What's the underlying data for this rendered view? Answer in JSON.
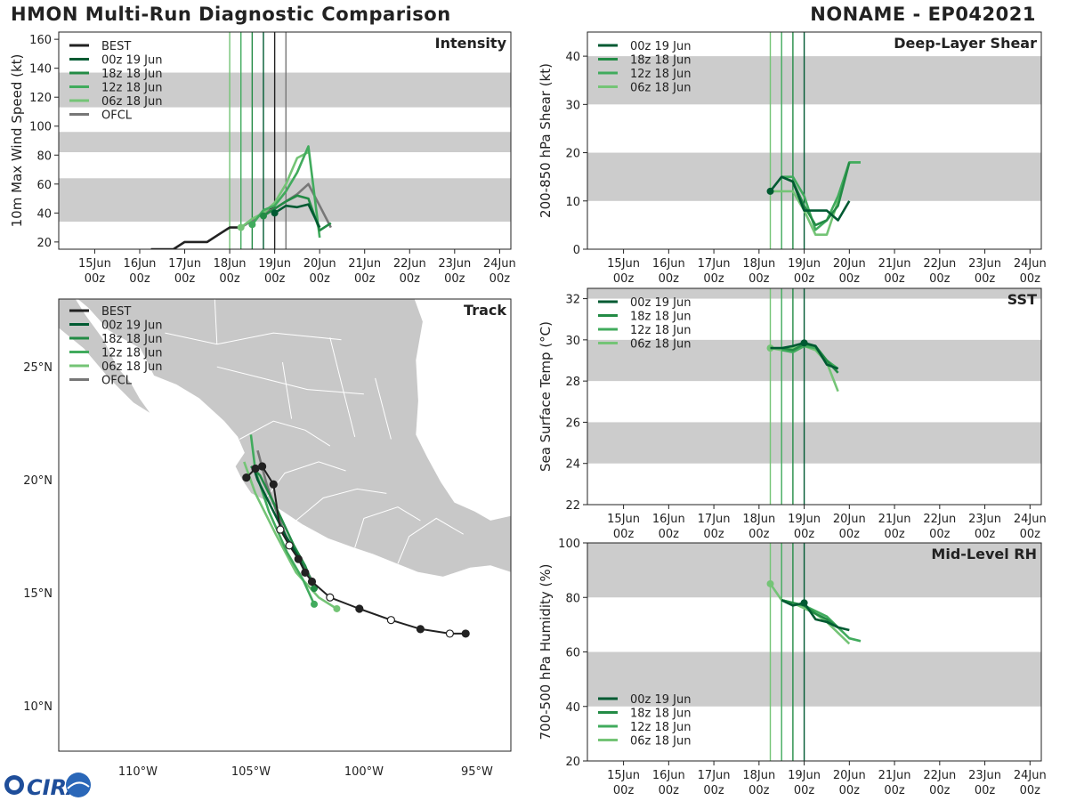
{
  "header": {
    "title": "HMON Multi-Run Diagnostic Comparison",
    "storm": "NONAME - EP042021"
  },
  "logo": {
    "text": "CIRA"
  },
  "colors": {
    "best": "#222222",
    "ofcl": "#777777",
    "run_00z19": "#005a32",
    "run_18z18": "#238b45",
    "run_12z18": "#41ab5d",
    "run_06z18": "#74c476",
    "band": "#cccccc",
    "land": "#c8c8c8"
  },
  "time_axis": {
    "days": [
      "15Jun",
      "16Jun",
      "17Jun",
      "18Jun",
      "19Jun",
      "20Jun",
      "21Jun",
      "22Jun",
      "23Jun",
      "24Jun"
    ],
    "hour_label": "00z",
    "range_days": [
      14.2,
      24.25
    ]
  },
  "chart_data": [
    {
      "id": "intensity",
      "type": "line",
      "title": "Intensity",
      "ylabel": "10m Max Wind Speed (kt)",
      "ylim": [
        15,
        165
      ],
      "yticks": [
        20,
        40,
        60,
        80,
        100,
        120,
        140,
        160
      ],
      "bands": [
        [
          34,
          64
        ],
        [
          82,
          96
        ],
        [
          113,
          137
        ]
      ],
      "init_lines": [
        18.0,
        18.25,
        18.5,
        18.75,
        19.0,
        19.25
      ],
      "legend": [
        "BEST",
        "00z 19 Jun",
        "18z 18 Jun",
        "12z 18 Jun",
        "06z 18 Jun",
        "OFCL"
      ],
      "series": [
        {
          "name": "BEST",
          "key": "best",
          "x": [
            16.25,
            16.5,
            16.75,
            17.0,
            17.25,
            17.5,
            17.75,
            18.0,
            18.25,
            18.5,
            18.75,
            19.0
          ],
          "y": [
            15,
            15,
            15,
            20,
            20,
            20,
            25,
            30,
            30,
            35,
            40,
            45
          ]
        },
        {
          "name": "00z 19 Jun",
          "key": "run_00z19",
          "x": [
            19.0,
            19.25,
            19.5,
            19.75,
            20.0
          ],
          "y": [
            40,
            45,
            44,
            46,
            30
          ],
          "marker_at": 0
        },
        {
          "name": "18z 18 Jun",
          "key": "run_18z18",
          "x": [
            18.75,
            19.0,
            19.25,
            19.5,
            19.75,
            20.0,
            20.25
          ],
          "y": [
            38,
            43,
            48,
            52,
            50,
            28,
            33
          ],
          "marker_at": 0
        },
        {
          "name": "12z 18 Jun",
          "key": "run_12z18",
          "x": [
            18.5,
            18.75,
            19.0,
            19.25,
            19.5,
            19.75,
            20.0
          ],
          "y": [
            32,
            42,
            45,
            55,
            68,
            86,
            23
          ],
          "marker_at": 0
        },
        {
          "name": "06z 18 Jun",
          "key": "run_06z18",
          "x": [
            18.25,
            18.5,
            18.75,
            19.0,
            19.25,
            19.5,
            19.75
          ],
          "y": [
            30,
            36,
            40,
            47,
            60,
            78,
            82
          ],
          "marker_at": 0
        },
        {
          "name": "OFCL",
          "key": "ofcl",
          "x": [
            18.25,
            18.5,
            18.75,
            19.0,
            19.25,
            19.5,
            19.75,
            20.0,
            20.25
          ],
          "y": [
            30,
            35,
            40,
            43,
            48,
            53,
            60,
            45,
            30
          ]
        }
      ]
    },
    {
      "id": "shear",
      "type": "line",
      "title": "Deep-Layer Shear",
      "ylabel": "200-850 hPa Shear (kt)",
      "ylim": [
        0,
        45
      ],
      "yticks": [
        0,
        10,
        20,
        30,
        40
      ],
      "bands": [
        [
          10,
          20
        ],
        [
          30,
          40
        ]
      ],
      "init_lines": [
        18.25,
        18.5,
        18.75,
        19.0
      ],
      "legend": [
        "00z 19 Jun",
        "18z 18 Jun",
        "12z 18 Jun",
        "06z 18 Jun"
      ],
      "series": [
        {
          "name": "00z 19 Jun",
          "key": "run_00z19",
          "x": [
            18.25,
            18.5,
            18.75,
            19.0,
            19.25,
            19.5,
            19.75,
            20.0
          ],
          "y": [
            12,
            15,
            14,
            8,
            8,
            8,
            6,
            10
          ],
          "marker_at": 0
        },
        {
          "name": "18z 18 Jun",
          "key": "run_18z18",
          "x": [
            18.5,
            18.75,
            19.0,
            19.25,
            19.5,
            19.75,
            20.0
          ],
          "y": [
            15,
            14,
            9,
            5,
            6,
            9,
            18
          ]
        },
        {
          "name": "12z 18 Jun",
          "key": "run_12z18",
          "x": [
            18.5,
            18.75,
            19.0,
            19.25,
            19.5,
            19.75,
            20.0,
            20.25
          ],
          "y": [
            15,
            15,
            11,
            4,
            6,
            11,
            18,
            18
          ]
        },
        {
          "name": "06z 18 Jun",
          "key": "run_06z18",
          "x": [
            18.25,
            18.5,
            18.75,
            19.0,
            19.25,
            19.5,
            19.75,
            20.0,
            20.25
          ],
          "y": [
            12,
            12,
            12,
            8,
            3,
            3,
            10,
            18,
            18
          ]
        }
      ]
    },
    {
      "id": "sst",
      "type": "line",
      "title": "SST",
      "ylabel": "Sea Surface Temp (°C)",
      "ylim": [
        22,
        32.5
      ],
      "yticks": [
        22,
        24,
        26,
        28,
        30,
        32
      ],
      "bands": [
        [
          24,
          26
        ],
        [
          28,
          30
        ],
        [
          32,
          34
        ]
      ],
      "init_lines": [
        18.25,
        18.5,
        18.75,
        19.0
      ],
      "legend": [
        "00z 19 Jun",
        "18z 18 Jun",
        "12z 18 Jun",
        "06z 18 Jun"
      ],
      "series": [
        {
          "name": "00z 19 Jun",
          "key": "run_00z19",
          "x": [
            18.25,
            18.5,
            18.75,
            19.0,
            19.25,
            19.5,
            19.75
          ],
          "y": [
            29.6,
            29.6,
            29.7,
            29.85,
            29.7,
            28.8,
            28.6
          ],
          "marker_at": 3
        },
        {
          "name": "18z 18 Jun",
          "key": "run_18z18",
          "x": [
            18.5,
            18.75,
            19.0,
            19.25,
            19.5,
            19.75
          ],
          "y": [
            29.6,
            29.5,
            29.8,
            29.7,
            29.0,
            28.4
          ]
        },
        {
          "name": "12z 18 Jun",
          "key": "run_12z18",
          "x": [
            18.5,
            18.75,
            19.0,
            19.25,
            19.5,
            19.75
          ],
          "y": [
            29.5,
            29.4,
            29.7,
            29.6,
            29.0,
            28.6
          ]
        },
        {
          "name": "06z 18 Jun",
          "key": "run_06z18",
          "x": [
            18.25,
            18.5,
            18.75,
            19.0,
            19.25,
            19.5,
            19.75
          ],
          "y": [
            29.6,
            29.5,
            29.6,
            29.7,
            29.5,
            28.9,
            27.5
          ],
          "marker_at": 0
        }
      ]
    },
    {
      "id": "rh",
      "type": "line",
      "title": "Mid-Level RH",
      "ylabel": "700-500 hPa Humidity (%)",
      "ylim": [
        20,
        100
      ],
      "yticks": [
        20,
        40,
        60,
        80,
        100
      ],
      "bands": [
        [
          40,
          60
        ],
        [
          80,
          100
        ]
      ],
      "init_lines": [
        18.25,
        18.5,
        18.75,
        19.0
      ],
      "legend": [
        "00z 19 Jun",
        "18z 18 Jun",
        "12z 18 Jun",
        "06z 18 Jun"
      ],
      "series": [
        {
          "name": "00z 19 Jun",
          "key": "run_00z19",
          "x": [
            18.5,
            18.75,
            19.0,
            19.25,
            19.5,
            19.75,
            20.0
          ],
          "y": [
            79,
            77,
            78,
            72,
            71,
            69,
            68
          ],
          "marker_at": 2
        },
        {
          "name": "18z 18 Jun",
          "key": "run_18z18",
          "x": [
            18.5,
            18.75,
            19.0,
            19.25,
            19.5,
            19.75
          ],
          "y": [
            79,
            78,
            77,
            74,
            72,
            69
          ]
        },
        {
          "name": "12z 18 Jun",
          "key": "run_12z18",
          "x": [
            18.5,
            18.75,
            19.0,
            19.25,
            19.5,
            19.75,
            20.0,
            20.25
          ],
          "y": [
            79,
            78,
            77,
            75,
            73,
            69,
            65,
            64
          ]
        },
        {
          "name": "06z 18 Jun",
          "key": "run_06z18",
          "x": [
            18.25,
            18.5,
            18.75,
            19.0,
            19.25,
            19.5,
            19.75,
            20.0
          ],
          "y": [
            85,
            79,
            78,
            76,
            74,
            71,
            67,
            63
          ],
          "marker_at": 0
        }
      ]
    },
    {
      "id": "track",
      "type": "scatter",
      "title": "Track",
      "xlim": [
        -113.5,
        -93.5
      ],
      "ylim": [
        8.0,
        28.0
      ],
      "xticks": [
        -110,
        -105,
        -100,
        -95
      ],
      "xtick_labels": [
        "110°W",
        "105°W",
        "100°W",
        "95°W"
      ],
      "yticks": [
        10,
        15,
        20,
        25
      ],
      "ytick_labels": [
        "10°N",
        "15°N",
        "20°N",
        "25°N"
      ],
      "legend": [
        "BEST",
        "00z 19 Jun",
        "18z 18 Jun",
        "12z 18 Jun",
        "06z 18 Jun",
        "OFCL"
      ],
      "series": [
        {
          "name": "BEST",
          "key": "best",
          "lon": [
            -95.5,
            -96.2,
            -97.5,
            -98.8,
            -100.2,
            -101.5,
            -102.3,
            -102.6,
            -102.9,
            -103.3,
            -103.7,
            -104.0,
            -104.5,
            -104.8,
            -105.2
          ],
          "lat": [
            13.2,
            13.2,
            13.4,
            13.8,
            14.3,
            14.8,
            15.5,
            15.9,
            16.5,
            17.1,
            17.8,
            19.8,
            20.6,
            20.5,
            20.1
          ],
          "filled": [
            1,
            0,
            1,
            0,
            1,
            0,
            1,
            1,
            1,
            0,
            0,
            1,
            1,
            1,
            1
          ]
        },
        {
          "name": "00z 19 Jun",
          "key": "run_00z19",
          "lon": [
            -102.6,
            -102.9,
            -103.5,
            -104.2,
            -104.7,
            -104.9
          ],
          "lat": [
            15.9,
            16.6,
            17.6,
            19.0,
            20.0,
            20.6
          ]
        },
        {
          "name": "18z 18 Jun",
          "key": "run_18z18",
          "lon": [
            -102.2,
            -102.6,
            -103.1,
            -103.8,
            -104.6,
            -105.0
          ],
          "lat": [
            15.2,
            16.2,
            17.1,
            18.6,
            20.2,
            20.6
          ]
        },
        {
          "name": "12z 18 Jun",
          "key": "run_12z18",
          "lon": [
            -102.2,
            -102.7,
            -103.4,
            -104.2,
            -104.8,
            -105.0
          ],
          "lat": [
            14.5,
            15.6,
            16.8,
            18.6,
            20.4,
            22.0
          ]
        },
        {
          "name": "06z 18 Jun",
          "key": "run_06z18",
          "lon": [
            -101.2,
            -102.0,
            -103.0,
            -103.9,
            -104.8,
            -105.3
          ],
          "lat": [
            14.3,
            14.8,
            15.9,
            17.6,
            19.4,
            20.8
          ]
        },
        {
          "name": "OFCL",
          "key": "ofcl",
          "lon": [
            -102.2,
            -102.9,
            -103.4,
            -103.8,
            -104.3,
            -104.7
          ],
          "lat": [
            15.4,
            16.6,
            17.4,
            18.4,
            19.8,
            21.3
          ]
        }
      ]
    }
  ]
}
